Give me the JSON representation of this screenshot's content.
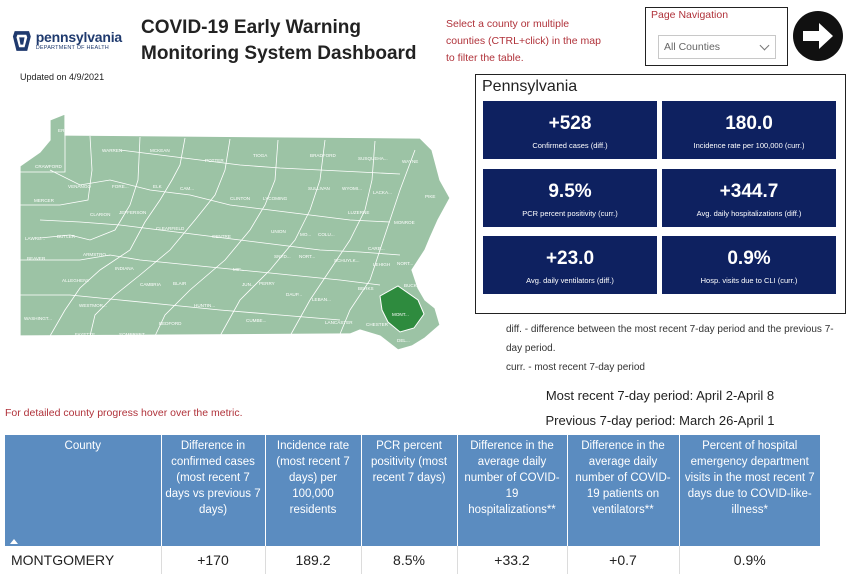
{
  "header": {
    "logo_name": "pennsylvania",
    "logo_sub": "DEPARTMENT OF HEALTH",
    "updated": "Updated on 4/9/2021",
    "title_line1": "COVID-19 Early Warning",
    "title_line2": "Monitoring System Dashboard",
    "hint": "Select a county or multiple counties (CTRL+click) in the map to filter the table."
  },
  "navigation": {
    "label": "Page Navigation",
    "selected": "All Counties"
  },
  "map": {
    "base_color": "#9cc3a5",
    "selected_color": "#2e8b3e",
    "labels": [
      "ERIE",
      "WARREN",
      "MCKEAN",
      "POTTER",
      "TIOGA",
      "BRADFORD",
      "SUSQUEHA...",
      "WAYNE",
      "CRAWFORD",
      "VENANGO",
      "FORE...",
      "ELK",
      "CAM...",
      "CLINTON",
      "LYCOMING",
      "SULLIVAN",
      "WYOMI...",
      "LACKA...",
      "PIKE",
      "MERCER",
      "CLARION",
      "JEFFERSON",
      "CLEARFIELD",
      "CENTRE",
      "UNION",
      "MO...",
      "COLU...",
      "LUZERNE",
      "MONROE",
      "LAWRE...",
      "BUTLER",
      "ARMSTRO...",
      "INDIANA",
      "SNYD...",
      "NORT...",
      "SCHUYLK...",
      "CARB...",
      "LEHIGH",
      "NORT...",
      "BEAVER",
      "ALLEGHENY",
      "CAMBRIA",
      "BLAIR",
      "MIF...",
      "JUN...",
      "PERRY",
      "DAUP...",
      "LEBAN...",
      "BERKS",
      "BUCKS",
      "WESTMOR...",
      "HUNTIN...",
      "WASHINGT...",
      "FAYETTE",
      "SOMERSET",
      "BEDFORD",
      "FRANKLIN",
      "CUMBE...",
      "ADAMS",
      "YORK",
      "LANCASTER",
      "CHESTER",
      "MONT...",
      "DEL...",
      "GREENE",
      "FULT..."
    ]
  },
  "hover_note": "For detailed county progress hover over the metric.",
  "metrics": {
    "region": "Pennsylvania",
    "cards": [
      {
        "value": "+528",
        "label": "Confirmed cases (diff.)"
      },
      {
        "value": "180.0",
        "label": "Incidence rate per 100,000 (curr.)"
      },
      {
        "value": "9.5%",
        "label": "PCR percent positivity (curr.)"
      },
      {
        "value": "+344.7",
        "label": "Avg. daily hospitalizations (diff.)"
      },
      {
        "value": "+23.0",
        "label": "Avg. daily ventilators (diff.)"
      },
      {
        "value": "0.9%",
        "label": "Hosp. visits due to CLI (curr.)"
      }
    ]
  },
  "notes": {
    "diff": "diff. - difference between the most recent 7-day period and the previous 7-day period.",
    "curr": "curr. - most recent 7-day period"
  },
  "periods": {
    "recent": "Most recent 7-day period: April 2-April 8",
    "previous": "Previous 7-day period: March 26-April 1"
  },
  "table": {
    "headers": [
      "County",
      "Difference in confirmed cases (most recent 7 days vs previous 7 days)",
      "Incidence rate (most recent 7 days) per 100,000 residents",
      "PCR percent positivity (most recent 7 days)",
      "Difference in the average daily number of COVID-19 hospitalizations**",
      "Difference in the average daily number of COVID-19 patients on ventilators**",
      "Percent of hospital emergency department visits in the most recent 7 days due to COVID-like-illness*"
    ],
    "rows": [
      [
        "MONTGOMERY",
        "+170",
        "189.2",
        "8.5%",
        "+33.2",
        "+0.7",
        "0.9%"
      ]
    ]
  }
}
